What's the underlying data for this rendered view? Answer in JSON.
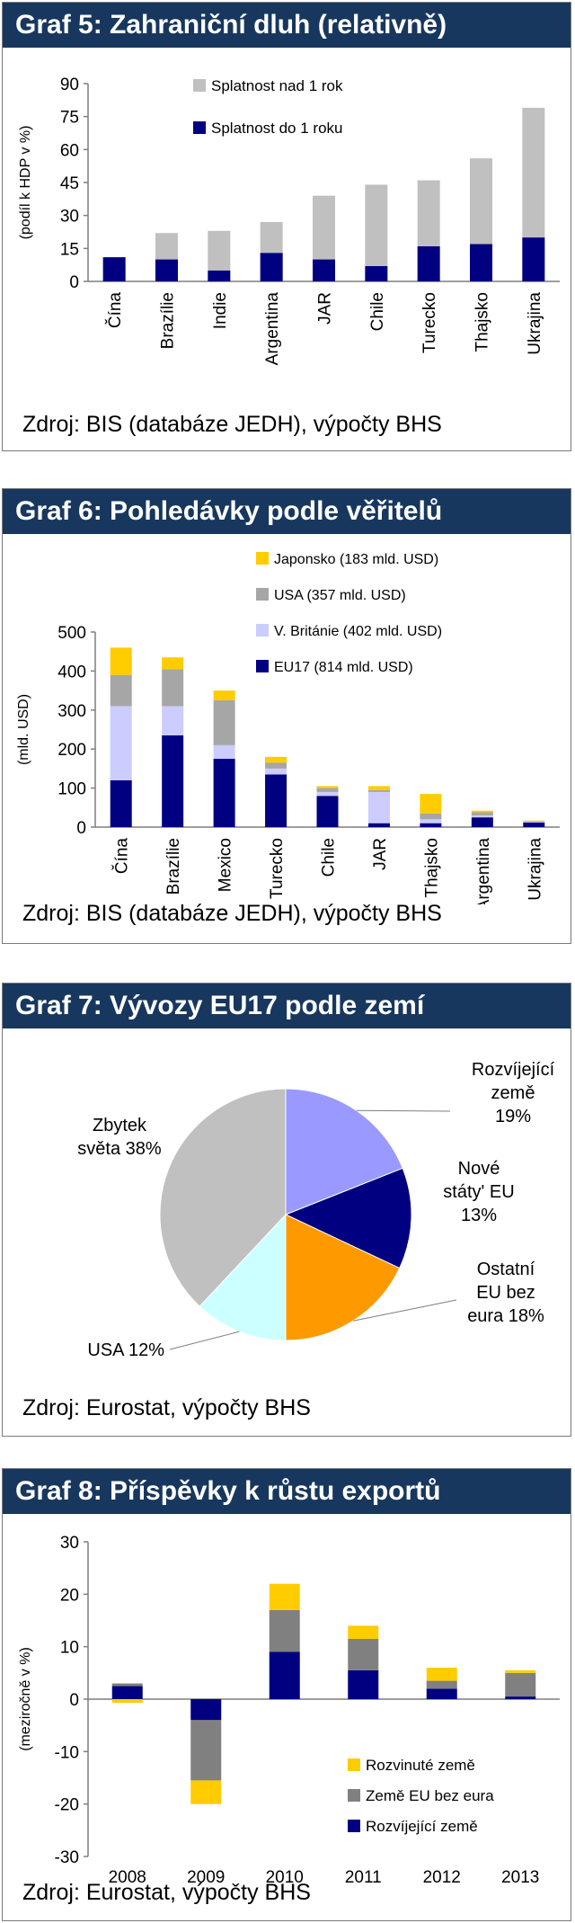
{
  "charts": [
    {
      "title": "Graf 5: Zahraniční dluh (relativně)",
      "source": "Zdroj: BIS (databáze JEDH), výpočty BHS",
      "ylabel": "(podíl k HDP v %)",
      "ylim": [
        0,
        90
      ],
      "yticks": [
        "0",
        "15",
        "30",
        "45",
        "60",
        "75",
        "90"
      ],
      "colors": {
        "short": "#000080",
        "long": "#c0c0c0"
      }
    },
    {
      "title": "Graf 6: Pohledávky podle věřitelů",
      "source": "Zdroj: BIS (databáze JEDH), výpočty BHS",
      "ylabel": "(mld. USD)",
      "ylim": [
        0,
        500
      ],
      "yticks": [
        "0",
        "100",
        "200",
        "300",
        "400",
        "500"
      ],
      "colors": {
        "eu17": "#000080",
        "uk": "#ccccff",
        "usa": "#a6a6a6",
        "japan": "#ffcc00"
      }
    },
    {
      "title": "Graf 7: Vývozy EU17 podle zemí",
      "source": "Zdroj: Eurostat, výpočty BHS",
      "labels": [
        {
          "lines": [
            "Rozvíjející",
            "země",
            "19%"
          ]
        },
        {
          "lines": [
            "Nové",
            "státy' EU",
            "13%"
          ]
        },
        {
          "lines": [
            "Ostatní",
            "EU bez",
            "eura 18%"
          ]
        },
        {
          "lines": [
            "USA 12%"
          ]
        },
        {
          "lines": [
            "Zbytek",
            "světa 38%"
          ]
        }
      ]
    },
    {
      "title": "Graf 8: Příspěvky k růstu exportů",
      "source": "Zdroj: Eurostat, výpočty BHS",
      "ylabel": "(meziročně v %)",
      "ylim": [
        -30,
        30
      ],
      "yticks": [
        "-30",
        "-20",
        "-10",
        "0",
        "10",
        "20",
        "30"
      ],
      "colors": {
        "developed": "#ffcc00",
        "eu_non_euro": "#808080",
        "emerging": "#000080"
      }
    }
  ],
  "chart_data": [
    {
      "type": "bar",
      "stacked": true,
      "categories": [
        "Čína",
        "Brazílie",
        "Indie",
        "Argentina",
        "JAR",
        "Chile",
        "Turecko",
        "Thajsko",
        "Ukrajina"
      ],
      "series": [
        {
          "name": "Splatnost do 1 roku",
          "values": [
            11,
            10,
            5,
            13,
            10,
            7,
            16,
            17,
            20
          ]
        },
        {
          "name": "Splatnost nad 1 rok",
          "values": [
            0,
            12,
            18,
            14,
            29,
            37,
            30,
            39,
            59
          ]
        }
      ],
      "ylabel": "(podíl k HDP v %)",
      "ylim": [
        0,
        90
      ]
    },
    {
      "type": "bar",
      "stacked": true,
      "categories": [
        "Čína",
        "Brazílie",
        "Mexico",
        "Turecko",
        "Chile",
        "JAR",
        "Thajsko",
        "Argentina",
        "Ukrajina"
      ],
      "series": [
        {
          "name": "EU17 (814 mld. USD)",
          "values": [
            120,
            235,
            175,
            135,
            80,
            10,
            10,
            25,
            12
          ]
        },
        {
          "name": "V. Británie (402 mld. USD)",
          "values": [
            190,
            75,
            35,
            15,
            10,
            80,
            10,
            5,
            3
          ]
        },
        {
          "name": "USA (357 mld. USD)",
          "values": [
            80,
            95,
            115,
            15,
            10,
            5,
            15,
            8,
            1
          ]
        },
        {
          "name": "Japonsko (183 mld. USD)",
          "values": [
            70,
            30,
            25,
            15,
            5,
            10,
            50,
            4,
            1
          ]
        }
      ],
      "ylabel": "(mld. USD)",
      "ylim": [
        0,
        500
      ]
    },
    {
      "type": "pie",
      "slices": [
        {
          "label": "Rozvíjející země",
          "value": 19,
          "color": "#9999ff"
        },
        {
          "label": "Nové státy' EU",
          "value": 13,
          "color": "#000080"
        },
        {
          "label": "Ostatní EU bez eura",
          "value": 18,
          "color": "#ff9900"
        },
        {
          "label": "USA",
          "value": 12,
          "color": "#ccffff"
        },
        {
          "label": "Zbytek světa",
          "value": 38,
          "color": "#c0c0c0"
        }
      ]
    },
    {
      "type": "bar",
      "stacked": true,
      "categories": [
        "2008",
        "2009",
        "2010",
        "2011",
        "2012",
        "2013"
      ],
      "series": [
        {
          "name": "Rozvíjející země",
          "values": [
            2.5,
            -4,
            9,
            5.5,
            2,
            0.5
          ]
        },
        {
          "name": "Země EU bez eura",
          "values": [
            0.5,
            -11.5,
            8,
            6,
            1.5,
            4.5
          ]
        },
        {
          "name": "Rozvinuté země",
          "values": [
            -0.7,
            -4.5,
            5,
            2.5,
            2.5,
            0.5
          ]
        }
      ],
      "ylabel": "(meziročně v %)",
      "ylim": [
        -30,
        30
      ]
    }
  ]
}
